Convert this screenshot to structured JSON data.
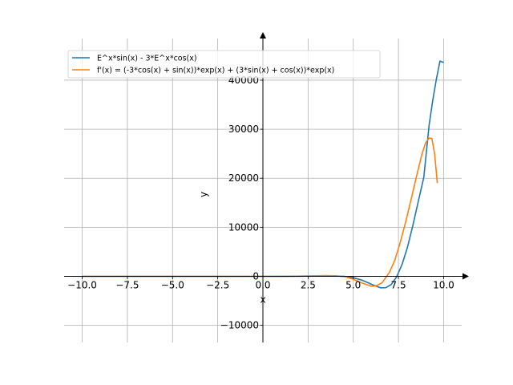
{
  "chart_data": {
    "type": "line",
    "xlabel": "x",
    "ylabel": "y",
    "xlim": [
      -11.0,
      11.0
    ],
    "ylim": [
      -13500,
      48500
    ],
    "grid": true,
    "spines": "centered-at-origin",
    "legend_position": "top-left",
    "x_ticks": [
      -10.0,
      -7.5,
      -5.0,
      -2.5,
      0.0,
      2.5,
      5.0,
      7.5,
      10.0
    ],
    "x_tick_labels": [
      "−10.0",
      "−7.5",
      "−5.0",
      "−2.5",
      "0.0",
      "2.5",
      "5.0",
      "7.5",
      "10.0"
    ],
    "y_ticks": [
      -10000,
      0,
      10000,
      20000,
      30000,
      40000
    ],
    "y_tick_labels": [
      "−10000",
      "0",
      "10000",
      "20000",
      "30000",
      "40000"
    ],
    "series": [
      {
        "name": "E^x*sin(x) - 3*E^x*cos(x)",
        "color": "#1f77b4",
        "x": [
          -10,
          -8,
          -6,
          -4,
          -2,
          0,
          1,
          2,
          3,
          3.5,
          4,
          4.5,
          5,
          5.5,
          6,
          6.5,
          6.8,
          7.1,
          7.4,
          7.7,
          8.0,
          8.3,
          8.6,
          8.9,
          9.2,
          9.4,
          9.6,
          9.8,
          10.0
        ],
        "values": [
          0,
          0,
          0,
          0,
          0,
          -3,
          -2,
          24,
          57,
          83,
          74,
          -17,
          -286,
          -802,
          -1617,
          -2336,
          -2330,
          -1667,
          -119,
          2420,
          5952,
          10380,
          15330,
          20160,
          30900,
          35900,
          40200,
          43900,
          43600
        ]
      },
      {
        "name": "f'(x) = (-3*cos(x) + sin(x))*exp(x) + (3*sin(x) + cos(x))*exp(x)",
        "color": "#ff7f0e",
        "x": [
          -10,
          -8,
          -6,
          -4,
          -2,
          0,
          1,
          2,
          3,
          3.5,
          4,
          4.5,
          5,
          5.5,
          6,
          6.3,
          6.6,
          7.0,
          7.3,
          7.6,
          7.9,
          8.2,
          8.5,
          8.8,
          9.0,
          9.2,
          9.35,
          9.5,
          9.65
        ],
        "values": [
          0,
          0,
          0,
          0,
          0,
          -2,
          6,
          47,
          118,
          150,
          106,
          -42,
          -600,
          -1400,
          -2030,
          -1900,
          -1300,
          800,
          3300,
          6900,
          11100,
          15700,
          20400,
          24900,
          27200,
          28200,
          28100,
          25000,
          19000
        ]
      }
    ]
  }
}
